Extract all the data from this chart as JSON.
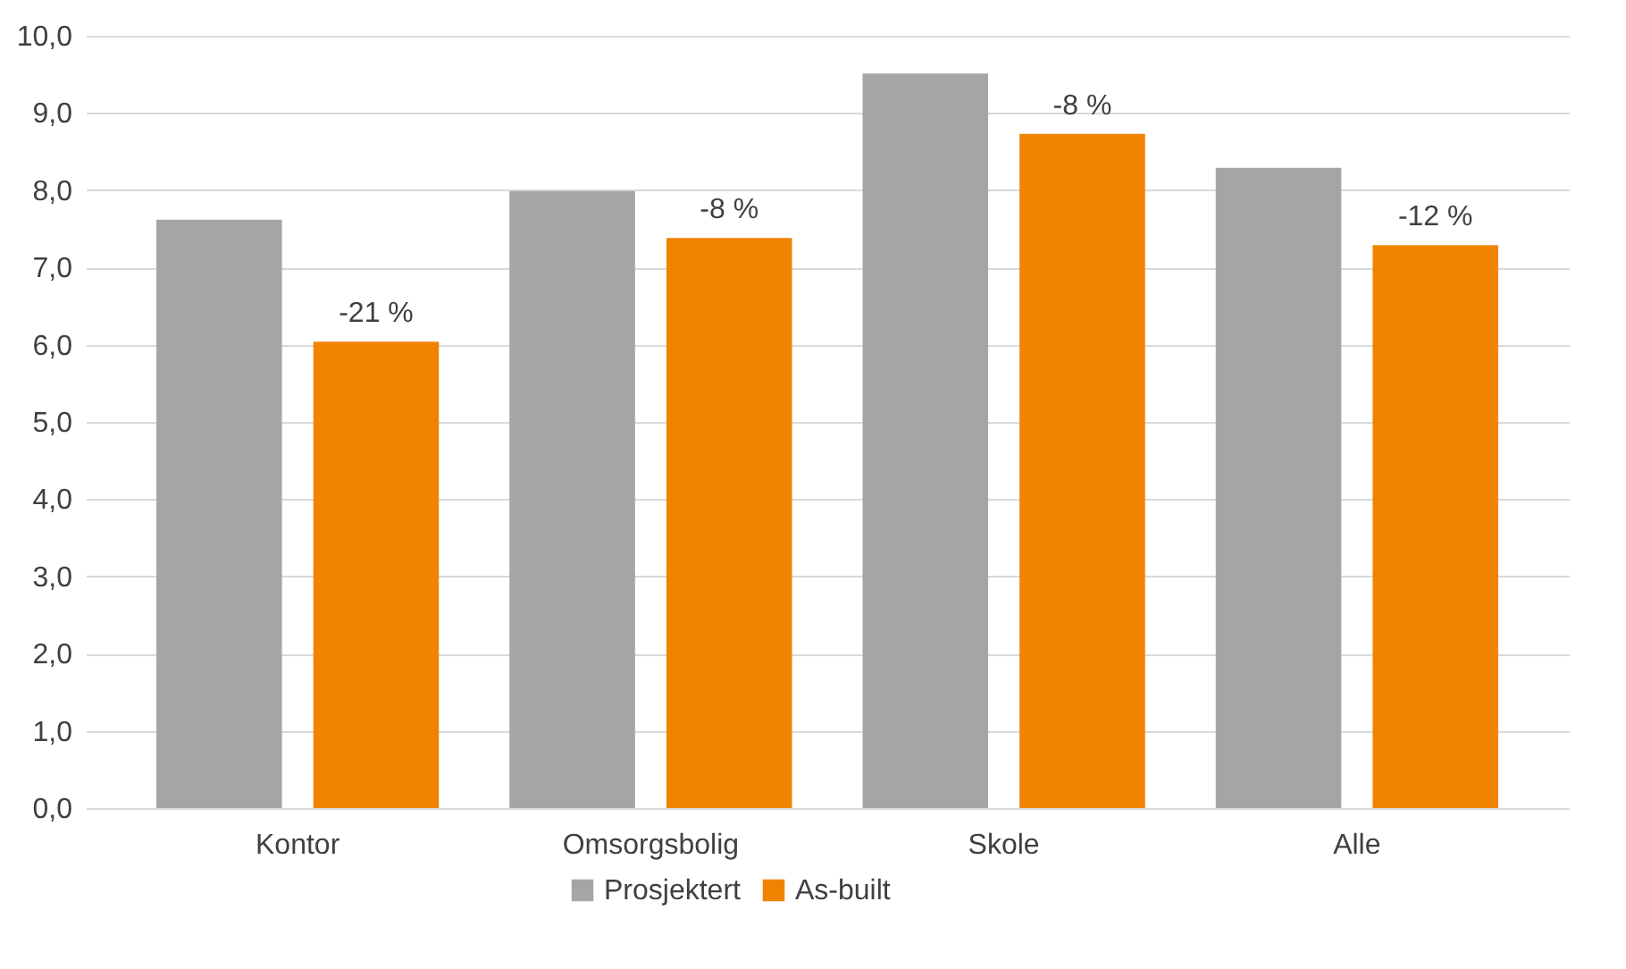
{
  "chart_data": {
    "type": "bar",
    "categories": [
      "Kontor",
      "Omsorgsbolig",
      "Skole",
      "Alle"
    ],
    "series": [
      {
        "name": "Prosjektert",
        "color": "#a5a5a5",
        "values": [
          7.62,
          7.99,
          9.51,
          8.29
        ]
      },
      {
        "name": "As-built",
        "color": "#f08300",
        "values": [
          6.04,
          7.38,
          8.73,
          7.29
        ]
      }
    ],
    "annotations": [
      "-21 %",
      "-8 %",
      "-8 %",
      "-12 %"
    ],
    "ylim": [
      0,
      10
    ],
    "yticks": [
      {
        "value": 0,
        "label": "0,0"
      },
      {
        "value": 1,
        "label": "1,0"
      },
      {
        "value": 2,
        "label": "2,0"
      },
      {
        "value": 3,
        "label": "3,0"
      },
      {
        "value": 4,
        "label": "4,0"
      },
      {
        "value": 5,
        "label": "5,0"
      },
      {
        "value": 6,
        "label": "6,0"
      },
      {
        "value": 7,
        "label": "7,0"
      },
      {
        "value": 8,
        "label": "8,0"
      },
      {
        "value": 9,
        "label": "9,0"
      },
      {
        "value": 10,
        "label": "10,0"
      }
    ],
    "grid": "y",
    "legend": "bottom"
  }
}
